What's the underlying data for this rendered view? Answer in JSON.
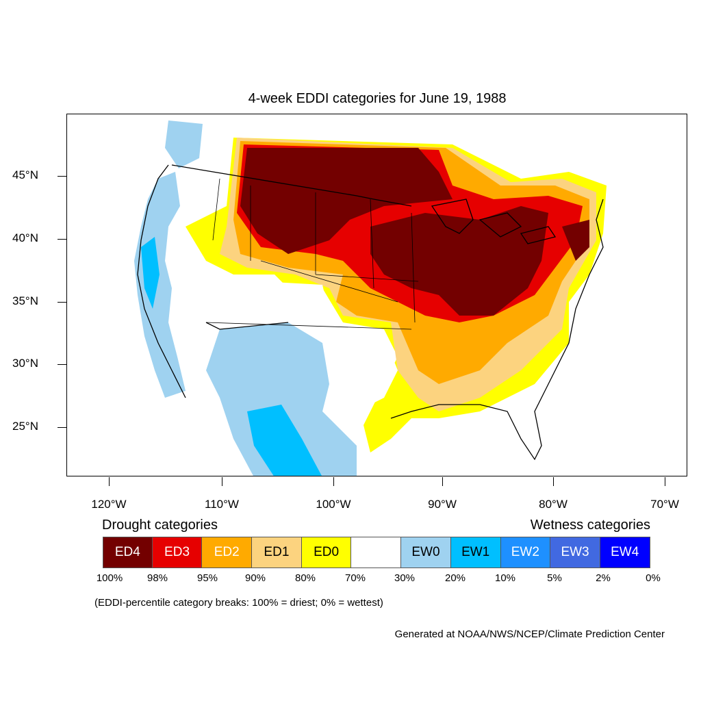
{
  "title": "4-week EDDI categories for June 19, 1988",
  "lat_labels": [
    "45°N",
    "40°N",
    "35°N",
    "30°N",
    "25°N"
  ],
  "lon_labels": [
    "120°W",
    "110°W",
    "100°W",
    "90°W",
    "80°W",
    "70°W"
  ],
  "legend": {
    "drought_heading": "Drought categories",
    "wetness_heading": "Wetness categories",
    "categories": [
      {
        "label": "ED4",
        "color": "#730000",
        "text_color": "#ffffff"
      },
      {
        "label": "ED3",
        "color": "#e60000",
        "text_color": "#ffffff"
      },
      {
        "label": "ED2",
        "color": "#ffaa00",
        "text_color": "#ffffff"
      },
      {
        "label": "ED1",
        "color": "#fcd37f",
        "text_color": "#000000"
      },
      {
        "label": "ED0",
        "color": "#ffff00",
        "text_color": "#000000"
      },
      {
        "label": "",
        "color": "#ffffff",
        "text_color": "#000000"
      },
      {
        "label": "EW0",
        "color": "#9fd2f0",
        "text_color": "#000000"
      },
      {
        "label": "EW1",
        "color": "#00bfff",
        "text_color": "#000000"
      },
      {
        "label": "EW2",
        "color": "#1e90ff",
        "text_color": "#ffffff"
      },
      {
        "label": "EW3",
        "color": "#4169e1",
        "text_color": "#ffffff"
      },
      {
        "label": "EW4",
        "color": "#0000ff",
        "text_color": "#ffffff"
      }
    ],
    "breaks": [
      "100%",
      "98%",
      "95%",
      "90%",
      "80%",
      "70%",
      "30%",
      "20%",
      "10%",
      "5%",
      "2%",
      "0%"
    ]
  },
  "note": "(EDDI-percentile category breaks: 100% = driest; 0% = wettest)",
  "credit": "Generated at NOAA/NWS/NCEP/Climate Prediction Center"
}
